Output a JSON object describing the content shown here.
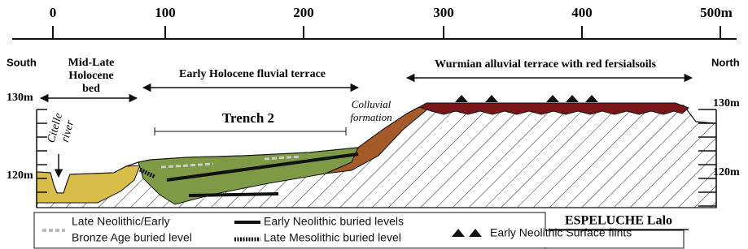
{
  "scale": {
    "ticks": [
      "0",
      "100",
      "200",
      "300",
      "400",
      "500m"
    ]
  },
  "orientation": {
    "left": "South",
    "right": "North"
  },
  "units": [
    {
      "lines": [
        "Mid-Late",
        "Holocene",
        "bed"
      ]
    },
    {
      "lines": [
        "Early Holocene fluvial terrace"
      ]
    },
    {
      "lines": [
        "Wurmian alluvial terrace with red fersialsoils"
      ]
    }
  ],
  "elevation": {
    "left": [
      "130m",
      "120m"
    ],
    "right": [
      "130m",
      "120m"
    ]
  },
  "annotations": {
    "river": [
      "Citelle",
      "river"
    ],
    "trench": "Trench 2",
    "colluvium": [
      "Colluvial",
      "formation"
    ],
    "site": "ESPELUCHE Lalo"
  },
  "legend": [
    {
      "lines": [
        "Late Neolithic/Early",
        "Bronze Age buried level"
      ]
    },
    {
      "lines": [
        "Early Neolithic buried levels"
      ]
    },
    {
      "lines": [
        "Late Mesolithic buried level"
      ]
    },
    {
      "lines": [
        "Early Neolithic Surface flints"
      ]
    }
  ]
}
